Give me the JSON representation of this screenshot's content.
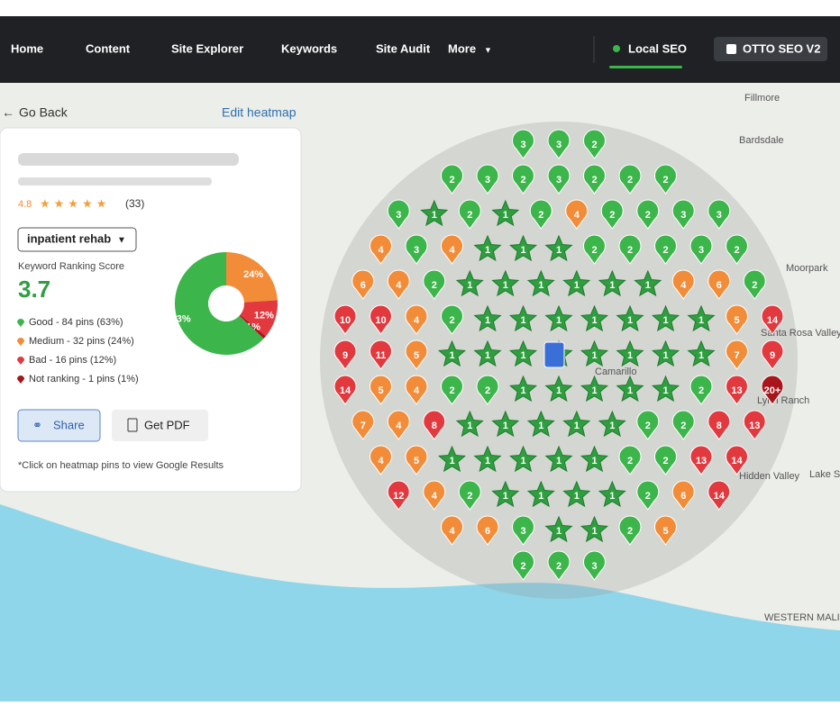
{
  "nav": {
    "items": [
      "Home",
      "Content",
      "Site Explorer",
      "Keywords",
      "Site Audit",
      "More"
    ],
    "local_seo": "Local SEO",
    "otto": "OTTO SEO V2"
  },
  "toolbar": {
    "back": "Go Back",
    "edit": "Edit heatmap"
  },
  "panel": {
    "rating": 4.8,
    "reviews": "(33)",
    "keyword": "inpatient rehab",
    "score_label": "Keyword Ranking Score",
    "score": 3.7,
    "share": "Share",
    "pdf": "Get PDF",
    "note": "*Click on heatmap pins to view Google Results"
  },
  "chart_data": {
    "type": "pie",
    "values": [
      63,
      24,
      12,
      1
    ],
    "value_labels": [
      "63%",
      "24%",
      "12%",
      "1%"
    ],
    "colors": [
      "#3cb54a",
      "#f28c38",
      "#e2393f",
      "#a8161c"
    ],
    "legend": [
      "Good - 84 pins (63%)",
      "Medium - 32 pins (24%)",
      "Bad - 16 pins (12%)",
      "Not ranking - 1 pins (1%)"
    ]
  },
  "map": {
    "places": [
      "Fillmore",
      "Bardsdale",
      "Moorpark",
      "Santa Rosa Valley",
      "Lynn Ranch",
      "Camarillo",
      "Hidden Valley",
      "Lake Sherwood",
      "WESTERN MALIBU"
    ],
    "pins": [
      [
        "3",
        "3",
        "2"
      ],
      [
        "2",
        "3",
        "2",
        "3",
        "2",
        "2",
        "2"
      ],
      [
        "3",
        "1",
        "2",
        "1",
        "2",
        "4",
        "2",
        "2",
        "3",
        "3"
      ],
      [
        "4",
        "3",
        "4",
        "1",
        "1",
        "1",
        "2",
        "2",
        "2",
        "3",
        "2"
      ],
      [
        "6",
        "4",
        "2",
        "1",
        "1",
        "1",
        "1",
        "1",
        "1",
        "4",
        "6",
        "2"
      ],
      [
        "10",
        "10",
        "4",
        "2",
        "1",
        "1",
        "1",
        "1",
        "1",
        "1",
        "1",
        "5",
        "14"
      ],
      [
        "9",
        "11",
        "5",
        "1",
        "1",
        "1",
        "1",
        "1",
        "1",
        "1",
        "1",
        "7",
        "9"
      ],
      [
        "14",
        "5",
        "4",
        "2",
        "2",
        "1",
        "1",
        "1",
        "1",
        "1",
        "2",
        "13",
        "20+"
      ],
      [
        "7",
        "4",
        "8",
        "1",
        "1",
        "1",
        "1",
        "1",
        "2",
        "2",
        "8",
        "13"
      ],
      [
        "4",
        "5",
        "1",
        "1",
        "1",
        "1",
        "1",
        "2",
        "2",
        "13",
        "14"
      ],
      [
        "12",
        "4",
        "2",
        "1",
        "1",
        "1",
        "1",
        "2",
        "6",
        "14"
      ],
      [
        "4",
        "6",
        "3",
        "1",
        "1",
        "2",
        "5"
      ],
      [
        "2",
        "2",
        "3"
      ]
    ]
  }
}
